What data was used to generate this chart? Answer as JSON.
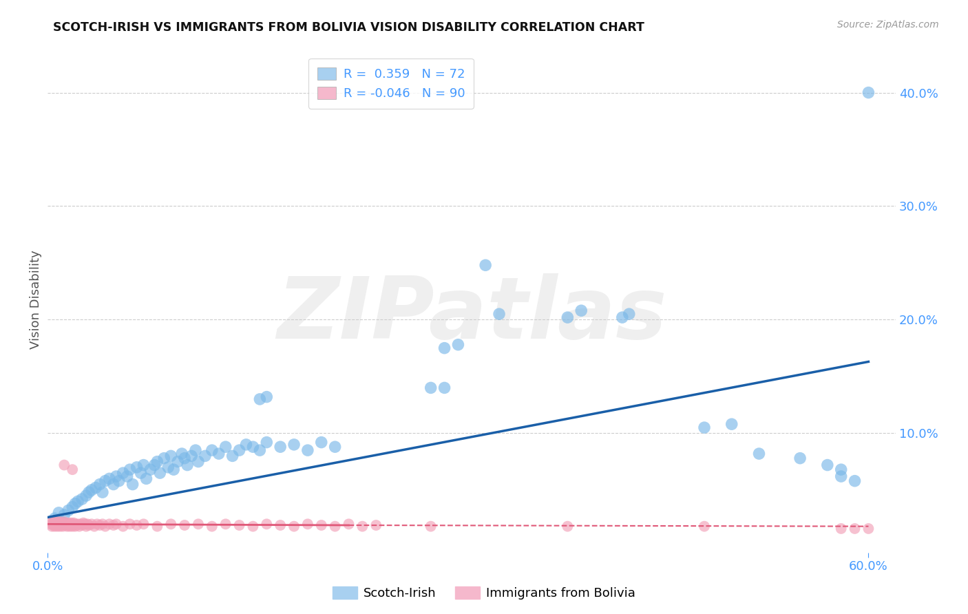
{
  "title": "SCOTCH-IRISH VS IMMIGRANTS FROM BOLIVIA VISION DISABILITY CORRELATION CHART",
  "source": "Source: ZipAtlas.com",
  "ylabel": "Vision Disability",
  "xlim": [
    0.0,
    0.62
  ],
  "ylim": [
    -0.005,
    0.44
  ],
  "ylabel_ticks": [
    "10.0%",
    "20.0%",
    "30.0%",
    "40.0%"
  ],
  "ylabel_vals": [
    0.1,
    0.2,
    0.3,
    0.4
  ],
  "xlabel_ticks": [
    "0.0%",
    "60.0%"
  ],
  "xlabel_vals": [
    0.0,
    0.6
  ],
  "watermark_text": "ZIPatlas",
  "blue_scatter": [
    [
      0.005,
      0.025
    ],
    [
      0.008,
      0.03
    ],
    [
      0.01,
      0.022
    ],
    [
      0.012,
      0.028
    ],
    [
      0.015,
      0.032
    ],
    [
      0.018,
      0.035
    ],
    [
      0.02,
      0.038
    ],
    [
      0.022,
      0.04
    ],
    [
      0.025,
      0.042
    ],
    [
      0.028,
      0.045
    ],
    [
      0.03,
      0.048
    ],
    [
      0.032,
      0.05
    ],
    [
      0.035,
      0.052
    ],
    [
      0.038,
      0.055
    ],
    [
      0.04,
      0.048
    ],
    [
      0.042,
      0.058
    ],
    [
      0.045,
      0.06
    ],
    [
      0.048,
      0.055
    ],
    [
      0.05,
      0.062
    ],
    [
      0.052,
      0.058
    ],
    [
      0.055,
      0.065
    ],
    [
      0.058,
      0.062
    ],
    [
      0.06,
      0.068
    ],
    [
      0.062,
      0.055
    ],
    [
      0.065,
      0.07
    ],
    [
      0.068,
      0.065
    ],
    [
      0.07,
      0.072
    ],
    [
      0.072,
      0.06
    ],
    [
      0.075,
      0.068
    ],
    [
      0.078,
      0.072
    ],
    [
      0.08,
      0.075
    ],
    [
      0.082,
      0.065
    ],
    [
      0.085,
      0.078
    ],
    [
      0.088,
      0.07
    ],
    [
      0.09,
      0.08
    ],
    [
      0.092,
      0.068
    ],
    [
      0.095,
      0.075
    ],
    [
      0.098,
      0.082
    ],
    [
      0.1,
      0.078
    ],
    [
      0.102,
      0.072
    ],
    [
      0.105,
      0.08
    ],
    [
      0.108,
      0.085
    ],
    [
      0.11,
      0.075
    ],
    [
      0.115,
      0.08
    ],
    [
      0.12,
      0.085
    ],
    [
      0.125,
      0.082
    ],
    [
      0.13,
      0.088
    ],
    [
      0.135,
      0.08
    ],
    [
      0.14,
      0.085
    ],
    [
      0.145,
      0.09
    ],
    [
      0.15,
      0.088
    ],
    [
      0.155,
      0.085
    ],
    [
      0.16,
      0.092
    ],
    [
      0.17,
      0.088
    ],
    [
      0.18,
      0.09
    ],
    [
      0.19,
      0.085
    ],
    [
      0.2,
      0.092
    ],
    [
      0.21,
      0.088
    ],
    [
      0.155,
      0.13
    ],
    [
      0.16,
      0.132
    ],
    [
      0.28,
      0.14
    ],
    [
      0.29,
      0.14
    ],
    [
      0.29,
      0.175
    ],
    [
      0.3,
      0.178
    ],
    [
      0.32,
      0.248
    ],
    [
      0.33,
      0.205
    ],
    [
      0.38,
      0.202
    ],
    [
      0.39,
      0.208
    ],
    [
      0.42,
      0.202
    ],
    [
      0.425,
      0.205
    ],
    [
      0.48,
      0.105
    ],
    [
      0.5,
      0.108
    ],
    [
      0.52,
      0.082
    ],
    [
      0.55,
      0.078
    ],
    [
      0.57,
      0.072
    ],
    [
      0.58,
      0.068
    ],
    [
      0.58,
      0.062
    ],
    [
      0.59,
      0.058
    ],
    [
      0.6,
      0.4
    ]
  ],
  "pink_scatter": [
    [
      0.002,
      0.02
    ],
    [
      0.003,
      0.018
    ],
    [
      0.003,
      0.022
    ],
    [
      0.004,
      0.019
    ],
    [
      0.004,
      0.021
    ],
    [
      0.005,
      0.02
    ],
    [
      0.005,
      0.018
    ],
    [
      0.005,
      0.022
    ],
    [
      0.006,
      0.019
    ],
    [
      0.006,
      0.021
    ],
    [
      0.007,
      0.02
    ],
    [
      0.007,
      0.018
    ],
    [
      0.007,
      0.022
    ],
    [
      0.008,
      0.019
    ],
    [
      0.008,
      0.021
    ],
    [
      0.009,
      0.02
    ],
    [
      0.009,
      0.018
    ],
    [
      0.009,
      0.022
    ],
    [
      0.01,
      0.019
    ],
    [
      0.01,
      0.021
    ],
    [
      0.011,
      0.02
    ],
    [
      0.011,
      0.018
    ],
    [
      0.012,
      0.02
    ],
    [
      0.012,
      0.022
    ],
    [
      0.013,
      0.019
    ],
    [
      0.013,
      0.021
    ],
    [
      0.014,
      0.02
    ],
    [
      0.014,
      0.018
    ],
    [
      0.015,
      0.019
    ],
    [
      0.015,
      0.021
    ],
    [
      0.016,
      0.02
    ],
    [
      0.016,
      0.018
    ],
    [
      0.017,
      0.019
    ],
    [
      0.017,
      0.021
    ],
    [
      0.018,
      0.02
    ],
    [
      0.018,
      0.018
    ],
    [
      0.019,
      0.019
    ],
    [
      0.019,
      0.021
    ],
    [
      0.02,
      0.02
    ],
    [
      0.02,
      0.018
    ],
    [
      0.021,
      0.019
    ],
    [
      0.022,
      0.02
    ],
    [
      0.023,
      0.018
    ],
    [
      0.024,
      0.02
    ],
    [
      0.025,
      0.019
    ],
    [
      0.026,
      0.021
    ],
    [
      0.027,
      0.02
    ],
    [
      0.028,
      0.018
    ],
    [
      0.029,
      0.02
    ],
    [
      0.03,
      0.019
    ],
    [
      0.032,
      0.02
    ],
    [
      0.034,
      0.018
    ],
    [
      0.036,
      0.02
    ],
    [
      0.038,
      0.019
    ],
    [
      0.04,
      0.02
    ],
    [
      0.042,
      0.018
    ],
    [
      0.045,
      0.02
    ],
    [
      0.048,
      0.019
    ],
    [
      0.05,
      0.02
    ],
    [
      0.055,
      0.018
    ],
    [
      0.06,
      0.02
    ],
    [
      0.065,
      0.019
    ],
    [
      0.07,
      0.02
    ],
    [
      0.08,
      0.018
    ],
    [
      0.09,
      0.02
    ],
    [
      0.1,
      0.019
    ],
    [
      0.11,
      0.02
    ],
    [
      0.12,
      0.018
    ],
    [
      0.13,
      0.02
    ],
    [
      0.14,
      0.019
    ],
    [
      0.15,
      0.018
    ],
    [
      0.16,
      0.02
    ],
    [
      0.17,
      0.019
    ],
    [
      0.18,
      0.018
    ],
    [
      0.19,
      0.02
    ],
    [
      0.2,
      0.019
    ],
    [
      0.21,
      0.018
    ],
    [
      0.22,
      0.02
    ],
    [
      0.23,
      0.018
    ],
    [
      0.24,
      0.019
    ],
    [
      0.012,
      0.072
    ],
    [
      0.018,
      0.068
    ],
    [
      0.28,
      0.018
    ],
    [
      0.38,
      0.018
    ],
    [
      0.48,
      0.018
    ],
    [
      0.58,
      0.016
    ],
    [
      0.59,
      0.016
    ],
    [
      0.6,
      0.016
    ]
  ],
  "blue_line": [
    [
      0.0,
      0.026
    ],
    [
      0.6,
      0.163
    ]
  ],
  "pink_line_solid": [
    [
      0.0,
      0.02
    ],
    [
      0.22,
      0.019
    ]
  ],
  "pink_line_dashed": [
    [
      0.22,
      0.019
    ],
    [
      0.6,
      0.018
    ]
  ],
  "scatter_color_blue": "#7ab8e8",
  "scatter_color_pink": "#f2a0b8",
  "line_color_blue": "#1a5fa8",
  "line_color_pink": "#e05878",
  "background_color": "#ffffff",
  "grid_color": "#cccccc",
  "tick_color": "#4499ff",
  "title_color": "#111111",
  "source_color": "#999999",
  "ylabel_color": "#555555"
}
